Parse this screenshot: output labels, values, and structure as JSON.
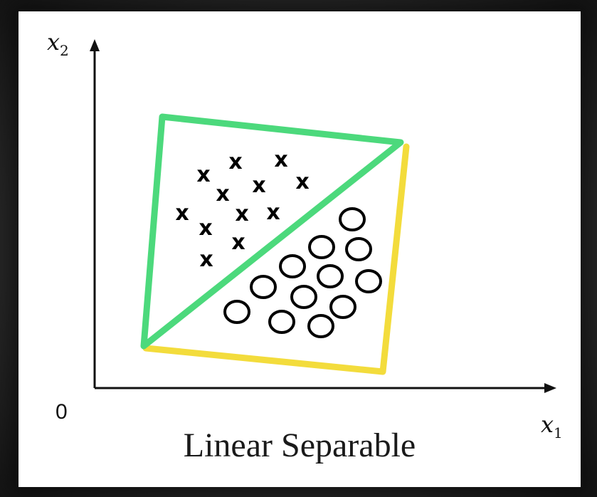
{
  "axes": {
    "y_label_base": "x",
    "y_label_sub": "2",
    "x_label_base": "x",
    "x_label_sub": "1",
    "origin_label": "0"
  },
  "caption": "Linear Separable",
  "colors": {
    "green_boundary": "#4cd97c",
    "yellow_boundary": "#f3dc3c",
    "axis": "#111111",
    "marker": "#000000"
  },
  "legend_classes": {
    "class_a_marker": "x",
    "class_b_marker": "o"
  }
}
